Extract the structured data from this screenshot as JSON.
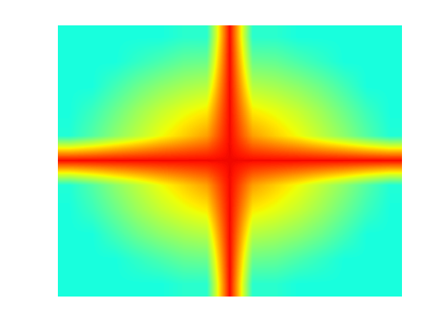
{
  "chart_data": {
    "type": "heatmap",
    "tick_labels": false,
    "color_range": [
      0,
      1
    ],
    "cells": [
      [
        0.38,
        0.38,
        0.38,
        0.38,
        0.38,
        0.4,
        0.4,
        0.9,
        0.4,
        0.4,
        0.38,
        0.38,
        0.38,
        0.38,
        0.38
      ],
      [
        0.38,
        0.38,
        0.38,
        0.41,
        0.44,
        0.47,
        0.48,
        0.9,
        0.48,
        0.47,
        0.44,
        0.41,
        0.38,
        0.38,
        0.38
      ],
      [
        0.38,
        0.38,
        0.43,
        0.48,
        0.52,
        0.55,
        0.57,
        0.9,
        0.57,
        0.55,
        0.52,
        0.48,
        0.43,
        0.38,
        0.38
      ],
      [
        0.38,
        0.42,
        0.48,
        0.54,
        0.59,
        0.63,
        0.66,
        0.9,
        0.66,
        0.63,
        0.59,
        0.54,
        0.48,
        0.42,
        0.38
      ],
      [
        0.39,
        0.45,
        0.52,
        0.58,
        0.64,
        0.69,
        0.74,
        0.9,
        0.74,
        0.69,
        0.64,
        0.58,
        0.52,
        0.45,
        0.39
      ],
      [
        0.9,
        0.9,
        0.9,
        0.9,
        0.9,
        0.9,
        0.9,
        0.9,
        0.9,
        0.9,
        0.9,
        0.9,
        0.9,
        0.9,
        0.9
      ],
      [
        0.39,
        0.45,
        0.52,
        0.58,
        0.64,
        0.69,
        0.74,
        0.9,
        0.74,
        0.69,
        0.64,
        0.58,
        0.52,
        0.45,
        0.39
      ],
      [
        0.38,
        0.42,
        0.48,
        0.54,
        0.59,
        0.63,
        0.66,
        0.9,
        0.66,
        0.63,
        0.59,
        0.54,
        0.48,
        0.42,
        0.38
      ],
      [
        0.38,
        0.38,
        0.43,
        0.48,
        0.52,
        0.55,
        0.57,
        0.9,
        0.57,
        0.55,
        0.52,
        0.48,
        0.43,
        0.38,
        0.38
      ],
      [
        0.38,
        0.38,
        0.38,
        0.41,
        0.44,
        0.47,
        0.48,
        0.9,
        0.48,
        0.47,
        0.44,
        0.41,
        0.38,
        0.38,
        0.38
      ],
      [
        0.38,
        0.38,
        0.38,
        0.38,
        0.38,
        0.4,
        0.4,
        0.9,
        0.4,
        0.4,
        0.38,
        0.38,
        0.38,
        0.38,
        0.38
      ]
    ]
  }
}
